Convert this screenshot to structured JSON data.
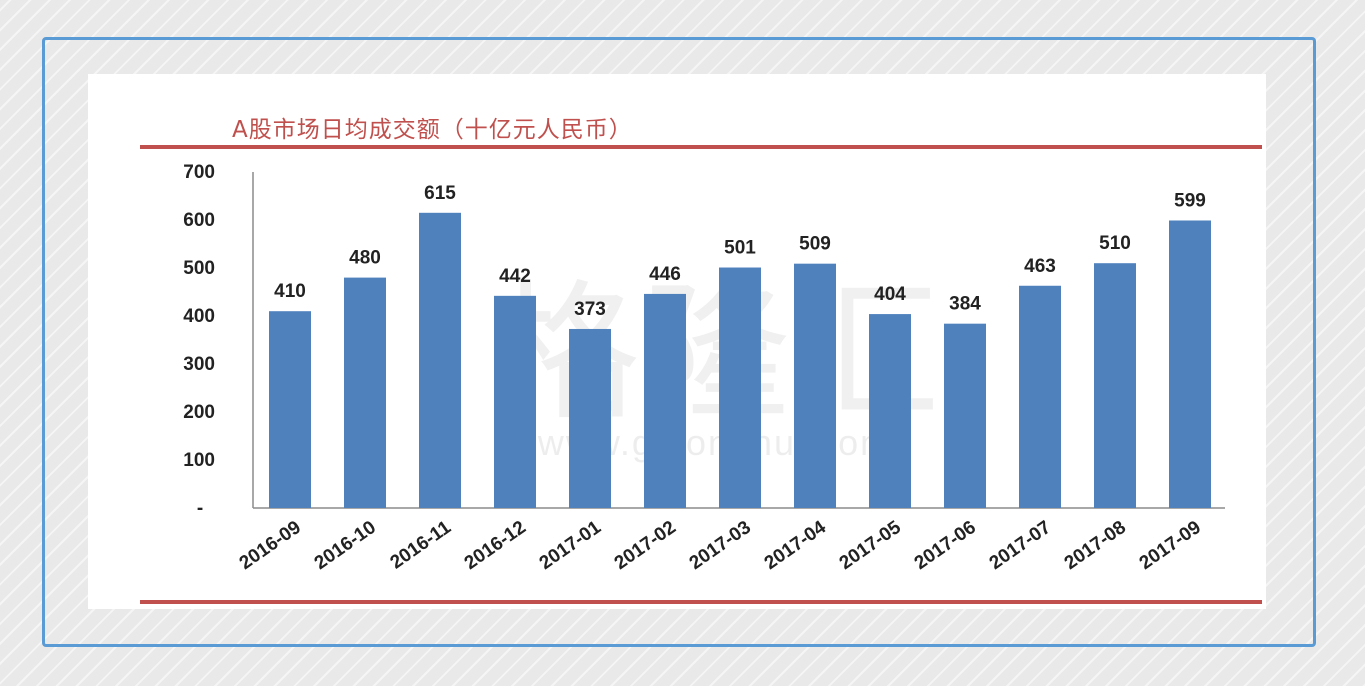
{
  "chart_data": {
    "type": "bar",
    "title": "A股市场日均成交额（十亿元人民币）",
    "categories": [
      "2016-09",
      "2016-10",
      "2016-11",
      "2016-12",
      "2017-01",
      "2017-02",
      "2017-03",
      "2017-04",
      "2017-05",
      "2017-06",
      "2017-07",
      "2017-08",
      "2017-09"
    ],
    "values": [
      410,
      480,
      615,
      442,
      373,
      446,
      501,
      509,
      404,
      384,
      463,
      510,
      599
    ],
    "y_ticks": [
      "-",
      "100",
      "200",
      "300",
      "400",
      "500",
      "600",
      "700"
    ],
    "ylim": [
      0,
      700
    ],
    "grid": false,
    "legend": "none",
    "bar_color": "#4f81bd",
    "rule_color": "#c0504d",
    "watermark": "格隆汇 www.gelonghui.com"
  }
}
